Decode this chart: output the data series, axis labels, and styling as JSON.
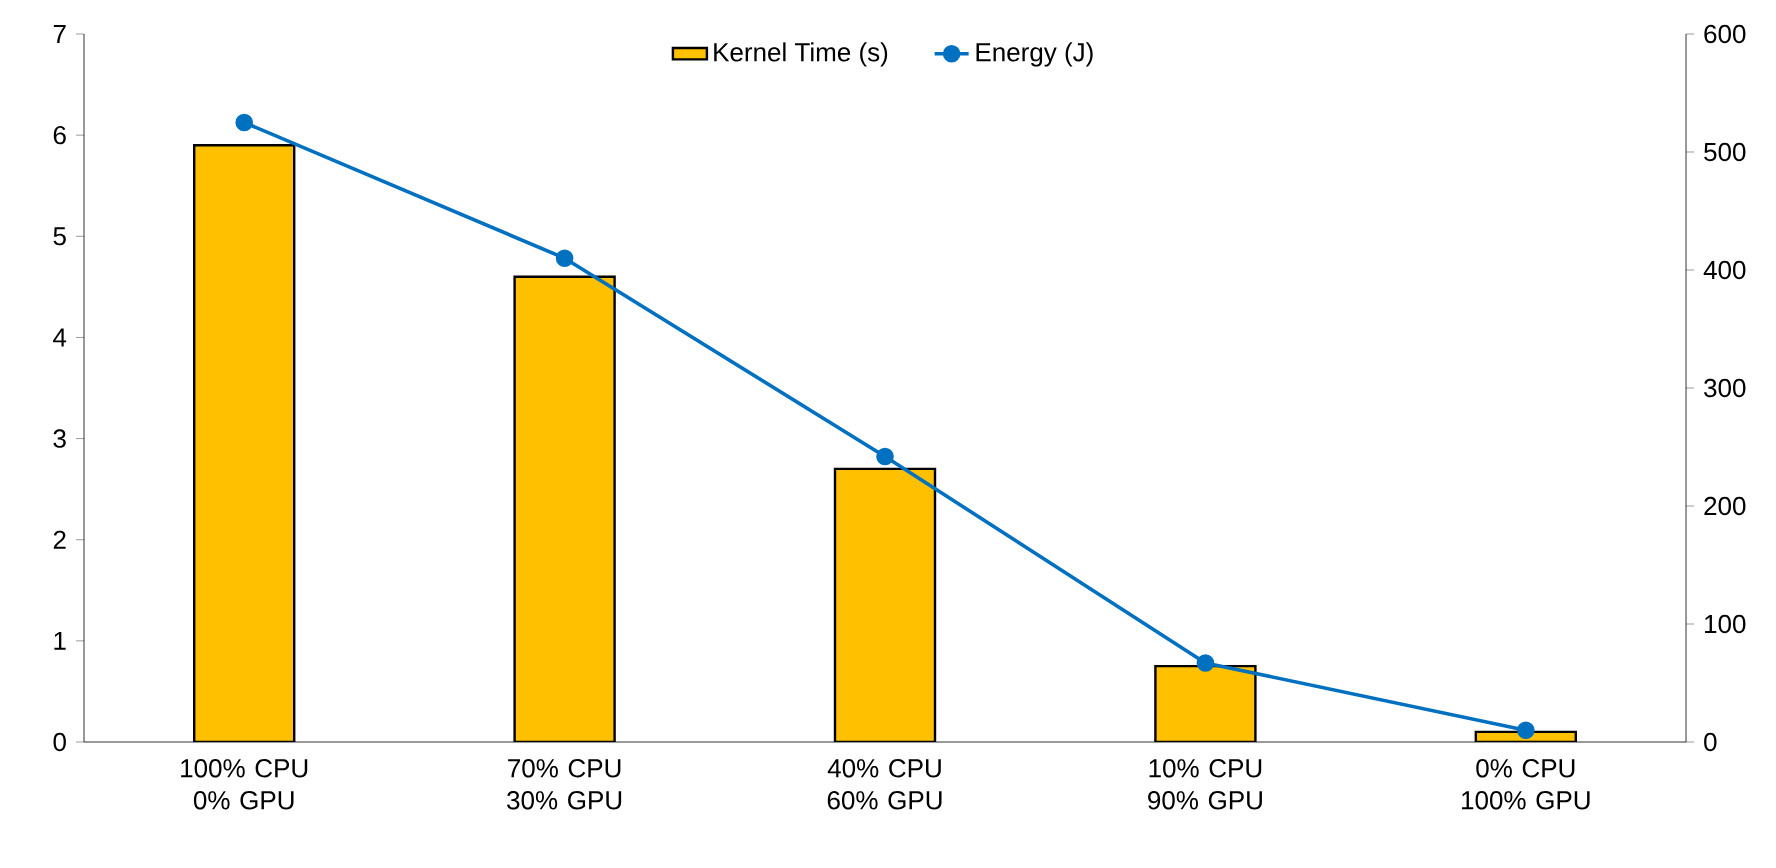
{
  "chart_data": {
    "type": "bar",
    "categories": [
      "100% CPU 0% GPU",
      "70% CPU 30% GPU",
      "40% CPU 60% GPU",
      "10% CPU 90% GPU",
      "0% CPU 100% GPU"
    ],
    "series": [
      {
        "name": "Kernel Time (s)",
        "color": "#ffc000",
        "values": [
          5.9,
          4.6,
          2.7,
          0.75,
          0.1
        ]
      },
      {
        "name": "Energy (J)",
        "type": "line",
        "axis": "y2",
        "color": "#0070c0",
        "marker": "circle",
        "values": [
          525,
          410,
          242,
          67,
          10
        ]
      }
    ],
    "ylim": [
      0,
      7
    ],
    "yticks": [
      0,
      1,
      2,
      3,
      4,
      5,
      6,
      7
    ],
    "y2lim": [
      0,
      600
    ],
    "y2ticks": [
      0,
      100,
      200,
      300,
      400,
      500,
      600
    ],
    "grid": false,
    "legend": "top"
  }
}
